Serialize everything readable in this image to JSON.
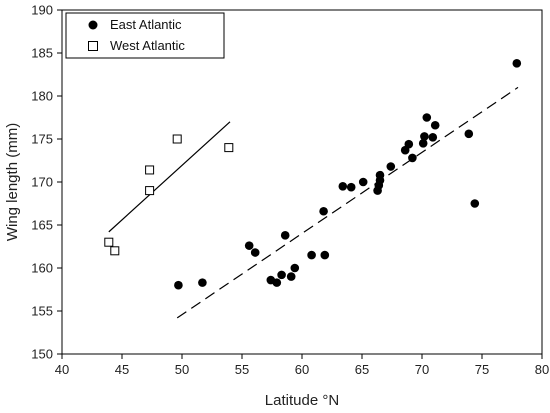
{
  "chart_data": {
    "type": "scatter",
    "title": "",
    "xlabel": "Latitude °N",
    "ylabel": "Wing length (mm)",
    "xlim": [
      40,
      80
    ],
    "ylim": [
      150,
      190
    ],
    "xticks": [
      40,
      45,
      50,
      55,
      60,
      65,
      70,
      75,
      80
    ],
    "yticks": [
      150,
      155,
      160,
      165,
      170,
      175,
      180,
      185,
      190
    ],
    "grid": false,
    "legend_position": "top-left",
    "series": [
      {
        "name": "East Atlantic",
        "marker": "filled-circle",
        "color": "#000000",
        "points": [
          [
            49.7,
            158.0
          ],
          [
            51.7,
            158.3
          ],
          [
            55.6,
            162.6
          ],
          [
            56.1,
            161.8
          ],
          [
            57.4,
            158.6
          ],
          [
            57.9,
            158.3
          ],
          [
            58.3,
            159.2
          ],
          [
            58.6,
            163.8
          ],
          [
            59.1,
            159.0
          ],
          [
            59.4,
            160.0
          ],
          [
            60.8,
            161.5
          ],
          [
            61.9,
            161.5
          ],
          [
            61.8,
            166.6
          ],
          [
            63.4,
            169.5
          ],
          [
            64.1,
            169.4
          ],
          [
            65.1,
            170.0
          ],
          [
            66.3,
            169.0
          ],
          [
            66.4,
            169.6
          ],
          [
            66.5,
            170.2
          ],
          [
            66.5,
            170.8
          ],
          [
            67.4,
            171.8
          ],
          [
            68.6,
            173.7
          ],
          [
            68.9,
            174.4
          ],
          [
            69.2,
            172.8
          ],
          [
            70.1,
            174.5
          ],
          [
            70.2,
            175.3
          ],
          [
            70.4,
            177.5
          ],
          [
            70.9,
            175.2
          ],
          [
            71.1,
            176.6
          ],
          [
            73.9,
            175.6
          ],
          [
            74.4,
            167.5
          ],
          [
            77.9,
            183.8
          ]
        ],
        "regression_line": {
          "x": [
            49.6,
            78.0
          ],
          "y": [
            154.2,
            181.0
          ],
          "style": "dashed"
        }
      },
      {
        "name": "West Atlantic",
        "marker": "open-square",
        "color": "#000000",
        "points": [
          [
            43.9,
            163.0
          ],
          [
            44.4,
            162.0
          ],
          [
            47.3,
            171.4
          ],
          [
            47.3,
            169.0
          ],
          [
            49.6,
            175.0
          ],
          [
            53.9,
            174.0
          ]
        ],
        "regression_line": {
          "x": [
            43.9,
            54.0
          ],
          "y": [
            164.2,
            177.0
          ],
          "style": "solid"
        }
      }
    ]
  }
}
